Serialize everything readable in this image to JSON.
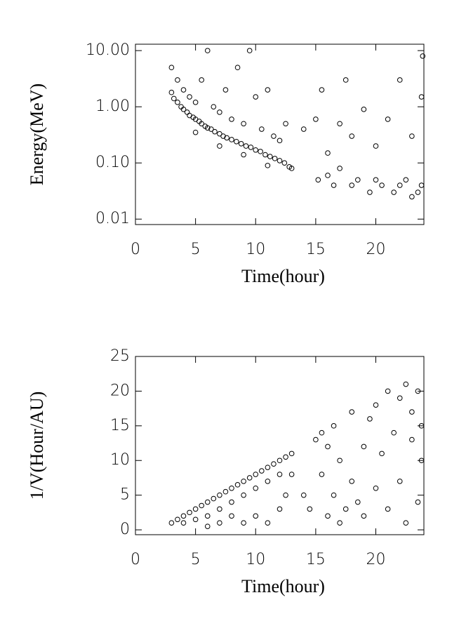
{
  "chart_data": [
    {
      "type": "scatter",
      "xlabel": "Time(hour)",
      "ylabel": "Energy(MeV)",
      "log_y": true,
      "marker_color": "#000000",
      "xlim": [
        0,
        24
      ],
      "xticks": [
        0,
        5,
        10,
        15,
        20
      ],
      "ylim": [
        0.008,
        13
      ],
      "yticks": [
        {
          "value": 0.01,
          "label": "0.01"
        },
        {
          "value": 0.1,
          "label": "0.10"
        },
        {
          "value": 1,
          "label": "1.00"
        },
        {
          "value": 10,
          "label": "10.00"
        }
      ],
      "x": [
        3,
        3.2,
        3.5,
        3.8,
        4,
        4.3,
        4.5,
        4.8,
        5,
        5.3,
        5.5,
        5.8,
        6,
        6.3,
        6.6,
        7,
        7.3,
        7.6,
        8,
        8.4,
        8.8,
        9.2,
        9.6,
        10,
        10.4,
        10.8,
        11.2,
        11.6,
        12,
        12.4,
        12.8,
        13,
        3,
        3.5,
        4,
        4.5,
        5,
        5.5,
        6,
        6.5,
        7,
        7.5,
        8,
        8.5,
        9,
        9.5,
        10,
        10.5,
        11,
        11.5,
        12,
        12.5,
        5,
        7,
        9,
        11,
        14,
        15,
        15.2,
        15.5,
        16,
        16,
        16.5,
        17,
        17,
        17.5,
        18,
        18,
        18.5,
        19,
        19.5,
        20,
        20,
        20.5,
        21,
        21.5,
        22,
        22,
        22.5,
        23,
        23,
        23.5,
        23.8,
        23.8,
        23.9
      ],
      "values": [
        1.8,
        1.4,
        1.2,
        1.0,
        0.9,
        0.8,
        0.7,
        0.65,
        0.6,
        0.55,
        0.5,
        0.45,
        0.42,
        0.4,
        0.36,
        0.33,
        0.3,
        0.28,
        0.26,
        0.24,
        0.22,
        0.2,
        0.19,
        0.17,
        0.16,
        0.14,
        0.13,
        0.12,
        0.11,
        0.1,
        0.085,
        0.08,
        5,
        3,
        2,
        1.5,
        1.2,
        3,
        10,
        1,
        0.8,
        2,
        0.6,
        5,
        0.5,
        10,
        1.5,
        0.4,
        2,
        0.3,
        0.25,
        0.5,
        0.35,
        0.2,
        0.14,
        0.09,
        0.4,
        0.6,
        0.05,
        2,
        0.06,
        0.15,
        0.04,
        0.5,
        0.08,
        3,
        0.04,
        0.3,
        0.05,
        0.9,
        0.03,
        0.05,
        0.2,
        0.04,
        0.6,
        0.03,
        0.04,
        3,
        0.05,
        0.025,
        0.3,
        0.03,
        0.04,
        1.5,
        8
      ]
    },
    {
      "type": "scatter",
      "xlabel": "Time(hour)",
      "ylabel": "1/V(Hour/AU)",
      "log_y": false,
      "marker_color": "#000000",
      "xlim": [
        0,
        24
      ],
      "xticks": [
        0,
        5,
        10,
        15,
        20
      ],
      "ylim": [
        -0.7,
        25
      ],
      "yticks": [
        0,
        5,
        10,
        15,
        20,
        25
      ],
      "x": [
        3,
        3.5,
        4,
        4.5,
        5,
        5.5,
        6,
        6.5,
        7,
        7.5,
        8,
        8.5,
        9,
        9.5,
        10,
        10.5,
        11,
        11.5,
        12,
        12.5,
        13,
        4,
        5,
        6,
        6,
        7,
        7,
        8,
        8,
        9,
        9,
        10,
        10,
        11,
        11,
        12,
        12,
        13,
        12.5,
        14,
        14.5,
        15,
        15.5,
        15.5,
        16,
        16,
        16.5,
        16.5,
        17,
        17,
        17.5,
        18,
        18,
        18.5,
        19,
        19,
        19.5,
        20,
        20,
        20.5,
        21,
        21,
        21.5,
        22,
        22,
        22.5,
        22.5,
        23,
        23,
        23.5,
        23.5,
        23.8,
        23.8
      ],
      "values": [
        1,
        1.5,
        2,
        2.5,
        3,
        3.5,
        4,
        4.5,
        5,
        5.5,
        6,
        6.5,
        7,
        7.5,
        8,
        8.5,
        9,
        9.5,
        10,
        10.5,
        11,
        1,
        1.5,
        2,
        0.5,
        3,
        1,
        4,
        2,
        5,
        1,
        6,
        2,
        7,
        1,
        8,
        3,
        8,
        5,
        5,
        3,
        13,
        14,
        8,
        12,
        2,
        15,
        5,
        10,
        1,
        3,
        17,
        7,
        4,
        12,
        2,
        16,
        6,
        18,
        11,
        20,
        3,
        14,
        19,
        7,
        21,
        1,
        17,
        13,
        20,
        4,
        15,
        10
      ]
    }
  ]
}
